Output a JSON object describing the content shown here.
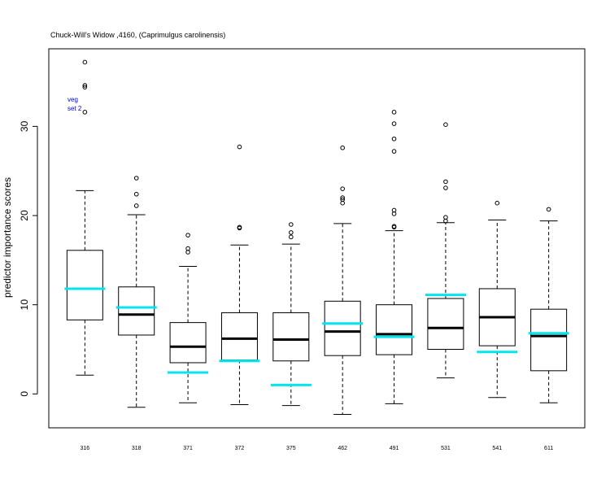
{
  "chart_data": {
    "type": "boxplot",
    "title": "Chuck-Will's Widow ,4160, (Caprimulgus carolinensis)",
    "xlabel": "",
    "ylabel": "predictor importance scores",
    "ylim": [
      -3.8,
      38.7
    ],
    "yticks": [
      0,
      10,
      20,
      30
    ],
    "grid": false,
    "annotation": [
      "veg",
      "set 2"
    ],
    "colors": {
      "box": "#000000",
      "median": "#000000",
      "reference": "#00e5ee",
      "annotation": "#0000cc"
    },
    "categories": [
      "316",
      "318",
      "371",
      "372",
      "375",
      "462",
      "491",
      "531",
      "541",
      "611"
    ],
    "boxes": [
      {
        "whisker_low": 2.1,
        "q1": 8.3,
        "median": 11.8,
        "q3": 16.1,
        "whisker_high": 22.8,
        "outliers": [
          31.6,
          34.4,
          34.6,
          37.2
        ],
        "reference": 11.8
      },
      {
        "whisker_low": -1.5,
        "q1": 6.6,
        "median": 8.9,
        "q3": 12.0,
        "whisker_high": 20.1,
        "outliers": [
          21.1,
          22.4,
          24.2
        ],
        "reference": 9.7
      },
      {
        "whisker_low": -1.0,
        "q1": 3.5,
        "median": 5.3,
        "q3": 8.0,
        "whisker_high": 14.3,
        "outliers": [
          15.9,
          16.3,
          17.8
        ],
        "reference": 2.4
      },
      {
        "whisker_low": -1.2,
        "q1": 3.8,
        "median": 6.2,
        "q3": 9.1,
        "whisker_high": 16.7,
        "outliers": [
          18.6,
          18.7,
          27.7
        ],
        "reference": 3.7
      },
      {
        "whisker_low": -1.3,
        "q1": 3.7,
        "median": 6.1,
        "q3": 9.1,
        "whisker_high": 16.8,
        "outliers": [
          17.6,
          18.1,
          19.0
        ],
        "reference": 1.0
      },
      {
        "whisker_low": -2.3,
        "q1": 4.3,
        "median": 7.0,
        "q3": 10.4,
        "whisker_high": 19.1,
        "outliers": [
          21.4,
          21.8,
          22.0,
          23.0,
          27.6
        ],
        "reference": 7.9
      },
      {
        "whisker_low": -1.1,
        "q1": 4.4,
        "median": 6.7,
        "q3": 10.0,
        "whisker_high": 18.3,
        "outliers": [
          18.7,
          18.8,
          20.2,
          20.6,
          27.2,
          28.6,
          30.3,
          31.6
        ],
        "reference": 6.4
      },
      {
        "whisker_low": 1.8,
        "q1": 5.0,
        "median": 7.4,
        "q3": 10.7,
        "whisker_high": 19.2,
        "outliers": [
          19.4,
          19.8,
          23.1,
          23.8,
          30.2
        ],
        "reference": 11.1
      },
      {
        "whisker_low": -0.4,
        "q1": 5.4,
        "median": 8.6,
        "q3": 11.8,
        "whisker_high": 19.5,
        "outliers": [
          21.4
        ],
        "reference": 4.7
      },
      {
        "whisker_low": -1.0,
        "q1": 2.6,
        "median": 6.5,
        "q3": 9.5,
        "whisker_high": 19.4,
        "outliers": [
          20.7
        ],
        "reference": 6.8
      }
    ]
  }
}
